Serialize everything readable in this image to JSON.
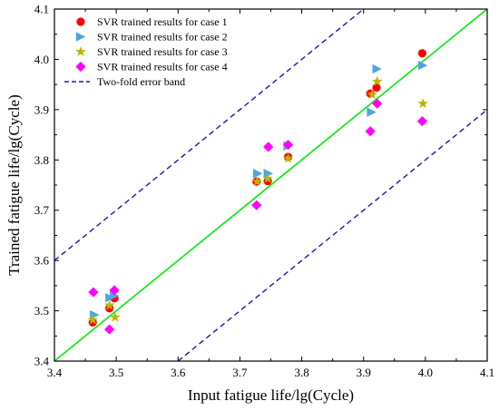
{
  "chart_data": {
    "type": "scatter",
    "title": "",
    "xlabel": "Input fatigue life/lg(Cycle)",
    "ylabel": "Trained fatigue life/lg(Cycle)",
    "xlim": [
      3.4,
      4.1
    ],
    "ylim": [
      3.4,
      4.1
    ],
    "xticks": [
      "3.4",
      "3.5",
      "3.6",
      "3.7",
      "3.8",
      "3.9",
      "4.0",
      "4.1"
    ],
    "yticks": [
      "3.4",
      "3.5",
      "3.6",
      "3.7",
      "3.8",
      "3.9",
      "4.0",
      "4.1"
    ],
    "grid": false,
    "legend_position": "top-left",
    "series": [
      {
        "name": "SVR trained results for case 1",
        "marker": "circle",
        "color": "#ff0000",
        "points": [
          [
            3.462,
            3.477
          ],
          [
            3.489,
            3.505
          ],
          [
            3.497,
            3.525
          ],
          [
            3.727,
            3.757
          ],
          [
            3.745,
            3.758
          ],
          [
            3.778,
            3.806
          ],
          [
            3.911,
            3.932
          ],
          [
            3.921,
            3.944
          ],
          [
            3.995,
            4.012
          ]
        ]
      },
      {
        "name": "SVR trained results for case 2",
        "marker": "triangle-right",
        "color": "#4da6e0",
        "points": [
          [
            3.465,
            3.492
          ],
          [
            3.49,
            3.526
          ],
          [
            3.497,
            3.53
          ],
          [
            3.729,
            3.773
          ],
          [
            3.746,
            3.773
          ],
          [
            3.778,
            3.828
          ],
          [
            3.913,
            3.895
          ],
          [
            3.922,
            3.981
          ],
          [
            3.996,
            3.988
          ]
        ]
      },
      {
        "name": "SVR trained results for case 3",
        "marker": "star",
        "color": "#b8b800",
        "points": [
          [
            3.462,
            3.482
          ],
          [
            3.489,
            3.511
          ],
          [
            3.498,
            3.487
          ],
          [
            3.728,
            3.757
          ],
          [
            3.745,
            3.763
          ],
          [
            3.778,
            3.803
          ],
          [
            3.914,
            3.93
          ],
          [
            3.922,
            3.956
          ],
          [
            3.996,
            3.912
          ]
        ]
      },
      {
        "name": "SVR trained results for case 4",
        "marker": "diamond",
        "color": "#ff00ff",
        "points": [
          [
            3.463,
            3.537
          ],
          [
            3.489,
            3.463
          ],
          [
            3.497,
            3.541
          ],
          [
            3.727,
            3.71
          ],
          [
            3.746,
            3.826
          ],
          [
            3.778,
            3.83
          ],
          [
            3.911,
            3.857
          ],
          [
            3.922,
            3.912
          ],
          [
            3.995,
            3.877
          ]
        ]
      }
    ],
    "reference_line": {
      "color": "#00ee00",
      "from": [
        3.4,
        3.4
      ],
      "to": [
        4.1,
        4.1
      ]
    },
    "error_band": {
      "name": "Two-fold error band",
      "color": "#1a1aaa",
      "style": "dashed",
      "upper": {
        "from": [
          3.4,
          3.6
        ],
        "to": [
          3.9,
          4.1
        ]
      },
      "lower": {
        "from": [
          3.6,
          3.4
        ],
        "to": [
          4.1,
          3.9
        ]
      }
    }
  }
}
